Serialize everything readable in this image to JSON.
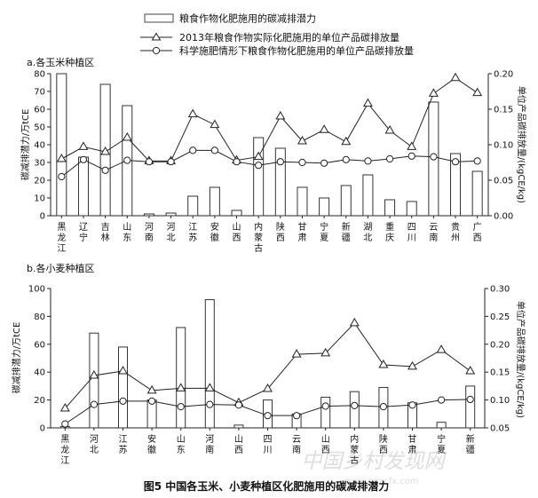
{
  "legend": {
    "bar": "粮食作物化肥施用的碳减排潜力",
    "line_actual": "2013年粮食作物实际化肥施用的单位产品碳排放量",
    "line_scientific": "科学施肥情形下粮食作物化肥施用的单位产品碳排放量"
  },
  "caption": "图5 中国各玉米、小麦种植区化肥施用的碳减排潜力",
  "watermark": {
    "cn": "中国乡村发现网",
    "url": "www.zgxcfx.com"
  },
  "chart_data": [
    {
      "type": "bar",
      "subtitle": "a.各玉米种植区",
      "ylabel": "碳减排潜力/万tCE",
      "y2label": "单位产品碳排放量/(kgCE/kg)",
      "ylim": [
        0,
        80
      ],
      "yticks": [
        "0",
        "10",
        "20",
        "30",
        "40",
        "50",
        "60",
        "70",
        "80"
      ],
      "y2lim": [
        0,
        0.2
      ],
      "y2ticks": [
        "0.00",
        "0.05",
        "0.10",
        "0.15",
        "0.20"
      ],
      "categories": [
        "黑龙江",
        "辽宁",
        "吉林",
        "山东",
        "河南",
        "河北",
        "江苏",
        "安徽",
        "山西",
        "内蒙古",
        "陕西",
        "甘肃",
        "宁夏",
        "新疆",
        "湖北",
        "重庆",
        "四川",
        "云南",
        "贵州",
        "广西"
      ],
      "series": [
        {
          "name": "粮食作物化肥施用的碳减排潜力",
          "axis": "left",
          "values": [
            80,
            33,
            74,
            62,
            1,
            1.5,
            11,
            16,
            3,
            44,
            38,
            16,
            10,
            17,
            23,
            9,
            8,
            64,
            35,
            25
          ]
        },
        {
          "name": "2013年粮食作物实际化肥施用的单位产品碳排放量",
          "axis": "right",
          "values": [
            0.08,
            0.097,
            0.09,
            0.11,
            0.077,
            0.077,
            0.143,
            0.128,
            0.078,
            0.083,
            0.14,
            0.105,
            0.121,
            0.104,
            0.158,
            0.12,
            0.097,
            0.172,
            0.194,
            0.173
          ]
        },
        {
          "name": "科学施肥情形下粮食作物化肥施用的单位产品碳排放量",
          "axis": "right",
          "values": [
            0.055,
            0.079,
            0.064,
            0.078,
            0.076,
            0.076,
            0.092,
            0.092,
            0.076,
            0.071,
            0.076,
            0.075,
            0.074,
            0.079,
            0.077,
            0.08,
            0.084,
            0.083,
            0.076,
            0.077
          ]
        }
      ]
    },
    {
      "type": "bar",
      "subtitle": "b.各小麦种植区",
      "ylabel": "碳减排潜力/万tCE",
      "y2label": "单位产品碳排放量/(kgCE/kg)",
      "ylim": [
        0,
        100
      ],
      "yticks": [
        "0",
        "20",
        "40",
        "60",
        "80",
        "100"
      ],
      "y2lim": [
        0.05,
        0.3
      ],
      "y2ticks": [
        "0.05",
        "0.10",
        "0.15",
        "0.20",
        "0.25",
        "0.30"
      ],
      "categories": [
        "黑龙江",
        "河北",
        "江苏",
        "安徽",
        "山东",
        "河南",
        "山西",
        "四川",
        "云南",
        "山西",
        "内蒙古",
        "陕西",
        "甘肃",
        "宁夏",
        "新疆"
      ],
      "series": [
        {
          "name": "粮食作物化肥施用的碳减排潜力",
          "axis": "left",
          "values": [
            1,
            68,
            58,
            20,
            72,
            92,
            2,
            20,
            10,
            22,
            26,
            29,
            18,
            4,
            30
          ]
        },
        {
          "name": "2013年粮食作物实际化肥施用的单位产品碳排放量",
          "axis": "right",
          "values": [
            0.085,
            0.144,
            0.152,
            0.117,
            0.121,
            0.121,
            0.095,
            0.12,
            0.182,
            0.184,
            0.238,
            0.163,
            0.16,
            0.19,
            0.152
          ]
        },
        {
          "name": "科学施肥情形下粮食作物化肥施用的单位产品碳排放量",
          "axis": "right",
          "values": [
            0.057,
            0.092,
            0.098,
            0.098,
            0.088,
            0.092,
            0.091,
            0.072,
            0.072,
            0.089,
            0.09,
            0.088,
            0.091,
            0.1,
            0.101
          ]
        }
      ]
    }
  ]
}
